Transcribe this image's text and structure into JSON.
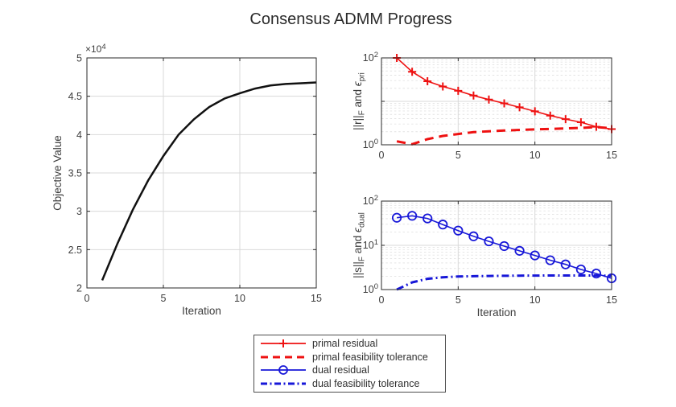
{
  "title": "Consensus ADMM Progress",
  "colors": {
    "red": "#ee1111",
    "blue": "#1717d8",
    "black": "#111111",
    "axis": "#2a2a2a",
    "text": "#3d3d3d",
    "grid_major": "#d9d9d9",
    "grid_minor": "#e3e3e3"
  },
  "legend": {
    "items": [
      {
        "label": "primal residual",
        "color": "red",
        "style": "solid",
        "marker": "plus"
      },
      {
        "label": "primal feasibility tolerance",
        "color": "red",
        "style": "dashed",
        "marker": "none"
      },
      {
        "label": "dual residual",
        "color": "blue",
        "style": "solid",
        "marker": "circle"
      },
      {
        "label": "dual feasibility tolerance",
        "color": "blue",
        "style": "dashdot",
        "marker": "none"
      }
    ]
  },
  "chart_data": [
    {
      "type": "line",
      "name": "objective-value",
      "xlabel": "Iteration",
      "ylabel_segments": [
        {
          "t": "Objective Value"
        }
      ],
      "yscale": "linear",
      "xlim": [
        0,
        15
      ],
      "ylim": [
        20000,
        50000
      ],
      "xticks": [
        0,
        5,
        10,
        15
      ],
      "xtick_labels": [
        "0",
        "5",
        "10",
        "15"
      ],
      "yticks": [
        20000,
        25000,
        30000,
        35000,
        40000,
        45000,
        50000
      ],
      "ytick_labels": [
        "2",
        "2.5",
        "3",
        "3.5",
        "4",
        "4.5",
        "5"
      ],
      "exponent": {
        "base": "×10",
        "exp": "4"
      },
      "xgrid": [
        5,
        10
      ],
      "ygrid": [
        25000,
        30000,
        35000,
        40000,
        45000
      ],
      "yminor": [],
      "x": [
        1,
        2,
        3,
        4,
        5,
        6,
        7,
        8,
        9,
        10,
        11,
        12,
        13,
        14,
        15
      ],
      "series": [
        {
          "name": "objective-line",
          "color": "black",
          "style": "solid",
          "marker": "none",
          "width": 2.5,
          "y": [
            21000,
            25800,
            30200,
            34000,
            37200,
            40000,
            42000,
            43600,
            44700,
            45400,
            46000,
            46400,
            46600,
            46700,
            46800
          ]
        }
      ]
    },
    {
      "type": "line",
      "name": "primal-residual-vs-tolerance",
      "xlabel": "",
      "ylabel_segments": [
        {
          "t": "||r||"
        },
        {
          "t": "F",
          "sub": true
        },
        {
          "t": " and "
        },
        {
          "t": "ϵ",
          "italic": true
        },
        {
          "t": "pri",
          "sub": true
        }
      ],
      "yscale": "log",
      "xlim": [
        0,
        15
      ],
      "ylim": [
        1,
        100
      ],
      "xticks": [
        0,
        5,
        10,
        15
      ],
      "xtick_labels": [
        "0",
        "5",
        "10",
        "15"
      ],
      "yticks": [
        1,
        10,
        100
      ],
      "ytick_labels": [
        {
          "value": 100,
          "exp": "2"
        },
        {
          "value": 1,
          "exp": "0"
        }
      ],
      "xgrid": [
        5,
        10
      ],
      "ygrid": [
        10
      ],
      "yminor": [
        2,
        3,
        4,
        5,
        6,
        7,
        8,
        9,
        20,
        30,
        40,
        50,
        60,
        70,
        80,
        90
      ],
      "x": [
        1,
        2,
        3,
        4,
        5,
        6,
        7,
        8,
        9,
        10,
        11,
        12,
        13,
        14,
        15
      ],
      "series": [
        {
          "name": "primal-residual-line",
          "color": "red",
          "style": "solid",
          "marker": "plus",
          "width": 1.6,
          "y": [
            100,
            48,
            29,
            22,
            17.5,
            13.6,
            11,
            9,
            7.3,
            5.9,
            4.7,
            3.9,
            3.3,
            2.6,
            2.3
          ]
        },
        {
          "name": "primal-tolerance-line",
          "color": "red",
          "style": "dashed",
          "marker": "none",
          "width": 3,
          "y": [
            1.2,
            1.03,
            1.35,
            1.6,
            1.77,
            1.95,
            2.05,
            2.13,
            2.2,
            2.27,
            2.32,
            2.38,
            2.45,
            2.55,
            2.4
          ]
        }
      ]
    },
    {
      "type": "line",
      "name": "dual-residual-vs-tolerance",
      "xlabel": "Iteration",
      "ylabel_segments": [
        {
          "t": "||s||"
        },
        {
          "t": "F",
          "sub": true
        },
        {
          "t": " and "
        },
        {
          "t": "ϵ",
          "italic": true
        },
        {
          "t": "dual",
          "sub": true
        }
      ],
      "yscale": "log",
      "xlim": [
        0,
        15
      ],
      "ylim": [
        1,
        100
      ],
      "xticks": [
        0,
        5,
        10,
        15
      ],
      "xtick_labels": [
        "0",
        "5",
        "10",
        "15"
      ],
      "yticks": [
        1,
        10,
        100
      ],
      "ytick_labels": [
        {
          "value": 100,
          "exp": "2"
        },
        {
          "value": 10,
          "exp": "1"
        },
        {
          "value": 1,
          "exp": "0"
        }
      ],
      "xgrid": [
        5,
        10
      ],
      "ygrid": [
        10
      ],
      "yminor": [
        2,
        3,
        4,
        5,
        6,
        7,
        8,
        9,
        20,
        30,
        40,
        50,
        60,
        70,
        80,
        90
      ],
      "x": [
        1,
        2,
        3,
        4,
        5,
        6,
        7,
        8,
        9,
        10,
        11,
        12,
        13,
        14,
        15
      ],
      "series": [
        {
          "name": "dual-residual-line",
          "color": "blue",
          "style": "solid",
          "marker": "circle",
          "width": 1.6,
          "y": [
            42,
            46.5,
            40.5,
            29.5,
            21.5,
            16,
            12.3,
            9.6,
            7.5,
            5.9,
            4.6,
            3.7,
            2.85,
            2.3,
            1.8
          ]
        },
        {
          "name": "dual-tolerance-line",
          "color": "blue",
          "style": "dashdot",
          "marker": "none",
          "width": 3,
          "y": [
            1.0,
            1.45,
            1.75,
            1.9,
            1.97,
            2.0,
            2.03,
            2.05,
            2.06,
            2.07,
            2.08,
            2.08,
            2.08,
            2.08,
            2.05
          ]
        }
      ]
    }
  ]
}
